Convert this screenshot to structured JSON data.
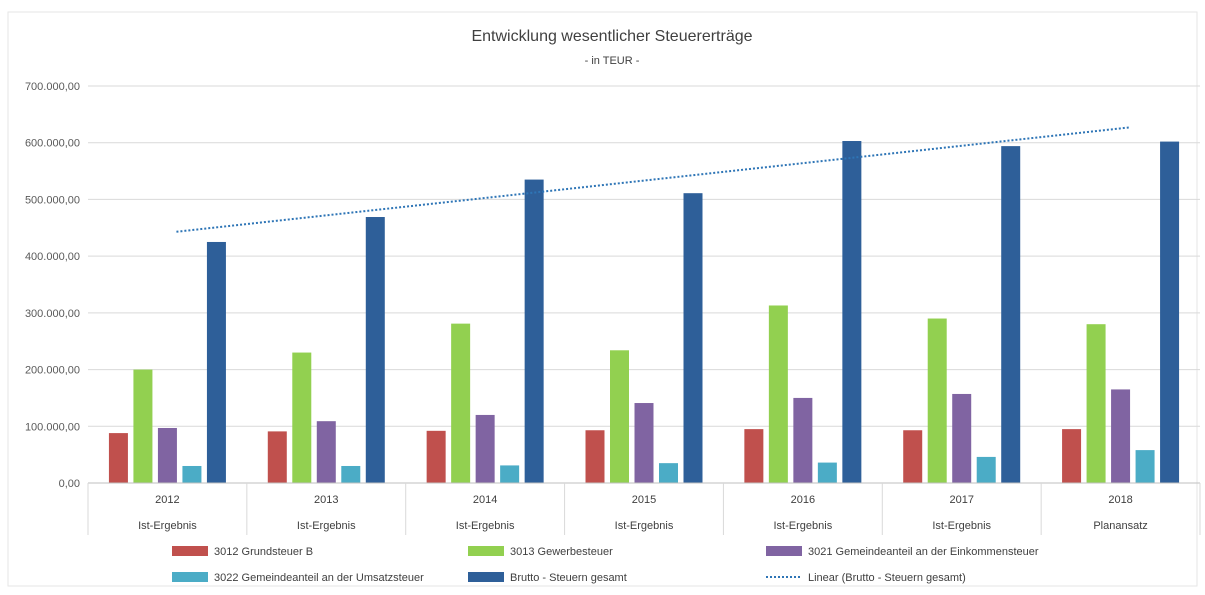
{
  "chart_data": {
    "type": "bar",
    "title": "Entwicklung wesentlicher Steuererträge",
    "subtitle": "- in TEUR -",
    "ylim": [
      0,
      700000
    ],
    "yticks": [
      "0,00",
      "100.000,00",
      "200.000,00",
      "300.000,00",
      "400.000,00",
      "500.000,00",
      "600.000,00",
      "700.000,00"
    ],
    "ytick_values": [
      0,
      100000,
      200000,
      300000,
      400000,
      500000,
      600000,
      700000
    ],
    "grid": true,
    "legend_position": "bottom",
    "categories": [
      "2012",
      "2013",
      "2014",
      "2015",
      "2016",
      "2017",
      "2018"
    ],
    "subcategories": [
      "Ist-Ergebnis",
      "Ist-Ergebnis",
      "Ist-Ergebnis",
      "Ist-Ergebnis",
      "Ist-Ergebnis",
      "Ist-Ergebnis",
      "Planansatz"
    ],
    "series": [
      {
        "name": "3012 Grundsteuer B",
        "color": "#c0504d",
        "values": [
          88000,
          91000,
          92000,
          93000,
          95000,
          93000,
          95000
        ]
      },
      {
        "name": "3013 Gewerbesteuer",
        "color": "#92d050",
        "values": [
          200000,
          230000,
          281000,
          234000,
          313000,
          290000,
          280000
        ]
      },
      {
        "name": "3021 Gemeindeanteil an der Einkommensteuer",
        "color": "#8064a2",
        "values": [
          97000,
          109000,
          120000,
          141000,
          150000,
          157000,
          165000
        ]
      },
      {
        "name": "3022 Gemeindeanteil an der Umsatzsteuer",
        "color": "#4bacc6",
        "values": [
          30000,
          30000,
          31000,
          35000,
          36000,
          46000,
          58000
        ]
      },
      {
        "name": "Brutto - Steuern gesamt",
        "color": "#2e5f99",
        "values": [
          425000,
          469000,
          535000,
          511000,
          603000,
          594000,
          602000
        ]
      }
    ],
    "trendline": {
      "name": "Linear (Brutto - Steuern gesamt)",
      "color": "#2e75b6",
      "start_value": 443000,
      "end_value": 627000
    }
  }
}
